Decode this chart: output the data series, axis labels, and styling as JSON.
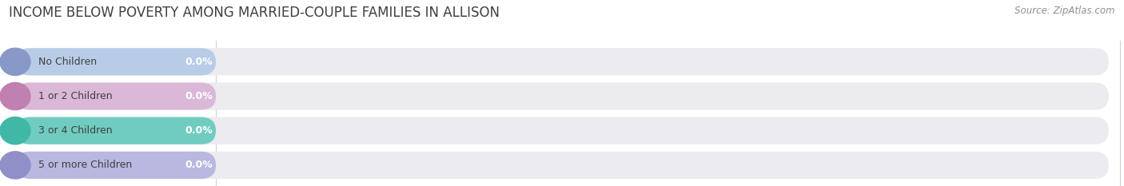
{
  "title": "INCOME BELOW POVERTY AMONG MARRIED-COUPLE FAMILIES IN ALLISON",
  "source": "Source: ZipAtlas.com",
  "categories": [
    "No Children",
    "1 or 2 Children",
    "3 or 4 Children",
    "5 or more Children"
  ],
  "values": [
    0.0,
    0.0,
    0.0,
    0.0
  ],
  "bar_colors": [
    "#b8cce8",
    "#dbb8d8",
    "#70ccc0",
    "#b8b8e0"
  ],
  "bar_bg_color": "#ebebf0",
  "bar_left_circle_colors": [
    "#8898c8",
    "#c080b0",
    "#40b8a8",
    "#9090c8"
  ],
  "title_fontsize": 12,
  "source_fontsize": 8.5,
  "label_fontsize": 9,
  "value_fontsize": 9,
  "tick_fontsize": 8.5,
  "background_color": "#ffffff",
  "grid_color": "#d0d0d8"
}
